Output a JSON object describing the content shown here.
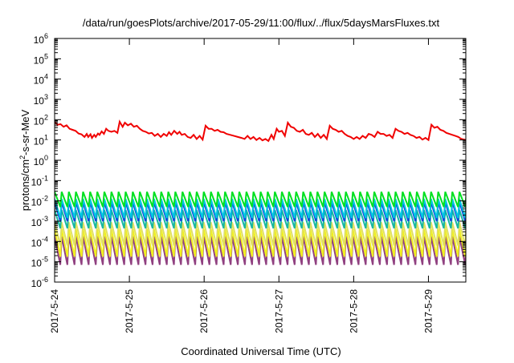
{
  "chart_data": {
    "type": "line",
    "title": "/data/run/goesPlots/archive/2017-05-29/11:00/flux/../flux/5daysMarsFluxes.txt",
    "xlabel": "Coordinated Universal Time (UTC)",
    "ylabel": {
      "main": "protons/cm",
      "sup": "2",
      "rest": "-s-sr-MeV"
    },
    "xlim": [
      0,
      5.5
    ],
    "ylim_log10": [
      -6,
      6
    ],
    "y_scale": "log",
    "grid": false,
    "legend": "none",
    "x_ticks": [
      {
        "label": "2017-5-24",
        "day": 0
      },
      {
        "label": "2017-5-25",
        "day": 1
      },
      {
        "label": "2017-5-26",
        "day": 2
      },
      {
        "label": "2017-5-27",
        "day": 3
      },
      {
        "label": "2017-5-28",
        "day": 4
      },
      {
        "label": "2017-5-29",
        "day": 5
      }
    ],
    "y_ticks": [
      {
        "base": "10",
        "exp": "6",
        "v": 6
      },
      {
        "base": "10",
        "exp": "5",
        "v": 5
      },
      {
        "base": "10",
        "exp": "4",
        "v": 4
      },
      {
        "base": "10",
        "exp": "3",
        "v": 3
      },
      {
        "base": "10",
        "exp": "2",
        "v": 2
      },
      {
        "base": "10",
        "exp": "1",
        "v": 1
      },
      {
        "base": "10",
        "exp": "0",
        "v": 0
      },
      {
        "base": "10",
        "exp": "-1",
        "v": -1
      },
      {
        "base": "10",
        "exp": "-2",
        "v": -2
      },
      {
        "base": "10",
        "exp": "-3",
        "v": -3
      },
      {
        "base": "10",
        "exp": "-4",
        "v": -4
      },
      {
        "base": "10",
        "exp": "-5",
        "v": -5
      },
      {
        "base": "10",
        "exp": "-6",
        "v": -6
      }
    ],
    "series": [
      {
        "color": "#f00000",
        "width": 2,
        "sawtooth": false,
        "log10_values": [
          [
            0.0,
            1.9
          ],
          [
            0.04,
            1.75
          ],
          [
            0.08,
            1.78
          ],
          [
            0.12,
            1.65
          ],
          [
            0.16,
            1.72
          ],
          [
            0.2,
            1.55
          ],
          [
            0.24,
            1.5
          ],
          [
            0.28,
            1.45
          ],
          [
            0.32,
            1.32
          ],
          [
            0.36,
            1.28
          ],
          [
            0.4,
            1.15
          ],
          [
            0.43,
            1.3
          ],
          [
            0.45,
            1.15
          ],
          [
            0.48,
            1.28
          ],
          [
            0.5,
            1.1
          ],
          [
            0.53,
            1.25
          ],
          [
            0.55,
            1.15
          ],
          [
            0.58,
            1.32
          ],
          [
            0.6,
            1.25
          ],
          [
            0.63,
            1.42
          ],
          [
            0.66,
            1.3
          ],
          [
            0.69,
            1.55
          ],
          [
            0.72,
            1.45
          ],
          [
            0.76,
            1.4
          ],
          [
            0.8,
            1.45
          ],
          [
            0.84,
            1.35
          ],
          [
            0.87,
            1.9
          ],
          [
            0.91,
            1.65
          ],
          [
            0.94,
            1.85
          ],
          [
            0.98,
            1.72
          ],
          [
            1.02,
            1.8
          ],
          [
            1.06,
            1.65
          ],
          [
            1.1,
            1.7
          ],
          [
            1.14,
            1.55
          ],
          [
            1.18,
            1.45
          ],
          [
            1.22,
            1.4
          ],
          [
            1.26,
            1.32
          ],
          [
            1.3,
            1.35
          ],
          [
            1.34,
            1.2
          ],
          [
            1.38,
            1.3
          ],
          [
            1.42,
            1.15
          ],
          [
            1.46,
            1.3
          ],
          [
            1.5,
            1.2
          ],
          [
            1.53,
            1.38
          ],
          [
            1.56,
            1.25
          ],
          [
            1.6,
            1.45
          ],
          [
            1.64,
            1.3
          ],
          [
            1.67,
            1.4
          ],
          [
            1.7,
            1.25
          ],
          [
            1.74,
            1.3
          ],
          [
            1.78,
            1.15
          ],
          [
            1.82,
            1.1
          ],
          [
            1.86,
            1.25
          ],
          [
            1.9,
            1.05
          ],
          [
            1.94,
            1.2
          ],
          [
            1.98,
            1.02
          ],
          [
            2.02,
            1.7
          ],
          [
            2.06,
            1.55
          ],
          [
            2.1,
            1.55
          ],
          [
            2.14,
            1.45
          ],
          [
            2.18,
            1.5
          ],
          [
            2.22,
            1.4
          ],
          [
            2.26,
            1.38
          ],
          [
            2.3,
            1.3
          ],
          [
            2.35,
            1.25
          ],
          [
            2.4,
            1.2
          ],
          [
            2.45,
            1.15
          ],
          [
            2.5,
            1.1
          ],
          [
            2.54,
            1.05
          ],
          [
            2.58,
            1.2
          ],
          [
            2.62,
            1.05
          ],
          [
            2.66,
            1.15
          ],
          [
            2.7,
            1.0
          ],
          [
            2.74,
            1.1
          ],
          [
            2.78,
            0.98
          ],
          [
            2.82,
            1.05
          ],
          [
            2.86,
            0.95
          ],
          [
            2.9,
            1.25
          ],
          [
            2.93,
            1.05
          ],
          [
            2.97,
            1.55
          ],
          [
            3.0,
            1.4
          ],
          [
            3.04,
            1.45
          ],
          [
            3.08,
            1.2
          ],
          [
            3.12,
            1.85
          ],
          [
            3.16,
            1.65
          ],
          [
            3.2,
            1.6
          ],
          [
            3.24,
            1.45
          ],
          [
            3.28,
            1.4
          ],
          [
            3.32,
            1.5
          ],
          [
            3.36,
            1.3
          ],
          [
            3.4,
            1.25
          ],
          [
            3.44,
            1.35
          ],
          [
            3.48,
            1.15
          ],
          [
            3.52,
            1.3
          ],
          [
            3.56,
            1.1
          ],
          [
            3.6,
            1.25
          ],
          [
            3.64,
            1.05
          ],
          [
            3.68,
            1.7
          ],
          [
            3.72,
            1.55
          ],
          [
            3.76,
            1.5
          ],
          [
            3.8,
            1.4
          ],
          [
            3.84,
            1.45
          ],
          [
            3.88,
            1.3
          ],
          [
            3.92,
            1.2
          ],
          [
            3.96,
            1.15
          ],
          [
            4.0,
            1.05
          ],
          [
            4.04,
            1.15
          ],
          [
            4.08,
            1.05
          ],
          [
            4.12,
            1.2
          ],
          [
            4.16,
            1.1
          ],
          [
            4.2,
            1.3
          ],
          [
            4.24,
            1.25
          ],
          [
            4.28,
            1.15
          ],
          [
            4.32,
            1.4
          ],
          [
            4.36,
            1.3
          ],
          [
            4.4,
            1.3
          ],
          [
            4.44,
            1.2
          ],
          [
            4.48,
            1.25
          ],
          [
            4.52,
            1.1
          ],
          [
            4.56,
            1.55
          ],
          [
            4.6,
            1.45
          ],
          [
            4.64,
            1.4
          ],
          [
            4.68,
            1.3
          ],
          [
            4.72,
            1.35
          ],
          [
            4.76,
            1.25
          ],
          [
            4.8,
            1.2
          ],
          [
            4.84,
            1.1
          ],
          [
            4.88,
            1.15
          ],
          [
            4.92,
            1.02
          ],
          [
            4.96,
            1.1
          ],
          [
            5.0,
            1.0
          ],
          [
            5.04,
            1.75
          ],
          [
            5.08,
            1.6
          ],
          [
            5.12,
            1.65
          ],
          [
            5.16,
            1.5
          ],
          [
            5.2,
            1.45
          ],
          [
            5.24,
            1.35
          ],
          [
            5.28,
            1.3
          ],
          [
            5.32,
            1.25
          ],
          [
            5.36,
            1.2
          ],
          [
            5.4,
            1.15
          ],
          [
            5.44,
            1.05
          ],
          [
            5.48,
            1.02
          ],
          [
            5.5,
            1.0
          ]
        ]
      },
      {
        "color": "#00e020",
        "width": 2,
        "sawtooth": true,
        "period": 0.095,
        "low": -2.3,
        "high": -1.55
      },
      {
        "color": "#00c8e0",
        "width": 2,
        "sawtooth": true,
        "period": 0.095,
        "low": -2.85,
        "high": -1.9
      },
      {
        "color": "#1040e0",
        "width": 2,
        "sawtooth": true,
        "period": 0.095,
        "low": -3.0,
        "high": -2.05
      },
      {
        "color": "#18b8a0",
        "width": 2,
        "sawtooth": true,
        "period": 0.095,
        "low": -3.35,
        "high": -2.45
      },
      {
        "color": "#e0e060",
        "width": 2,
        "sawtooth": true,
        "period": 0.095,
        "low": -4.2,
        "high": -3.05
      },
      {
        "color": "#f0f020",
        "width": 2,
        "sawtooth": true,
        "period": 0.095,
        "low": -4.75,
        "high": -3.4
      },
      {
        "color": "#904080",
        "width": 2,
        "sawtooth": true,
        "period": 0.095,
        "low": -5.15,
        "high": -3.75
      }
    ]
  }
}
